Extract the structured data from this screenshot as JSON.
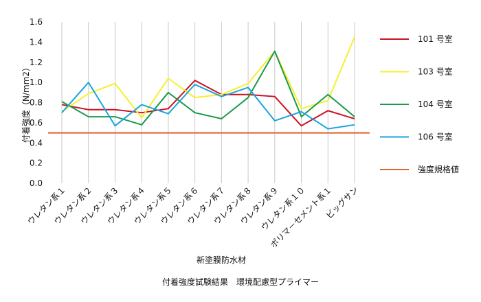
{
  "chart_data": {
    "type": "line",
    "title": "",
    "xlabel": "新塗膜防水材",
    "ylabel": "付着強度（N/mm2）",
    "ylim": [
      0,
      1.6
    ],
    "yticks": [
      0.0,
      0.2,
      0.4,
      0.6,
      0.8,
      1.0,
      1.2,
      1.4,
      1.6
    ],
    "ytick_labels": [
      "0.0",
      "0.2",
      "0.4",
      "0.6",
      "0.8",
      "1.0",
      "1.2",
      "1.4",
      "1.6"
    ],
    "grid": "vertical",
    "categories": [
      "ウレタン系１",
      "ウレタン系２",
      "ウレタン系３",
      "ウレタン系４",
      "ウレタン系５",
      "ウレタン系６",
      "ウレタン系７",
      "ウレタン系８",
      "ウレタン系９",
      "ウレタン系１０",
      "ポリマ－セメント系１",
      "ビッグサン"
    ],
    "series": [
      {
        "name": "101 号室",
        "color": "#cc1122",
        "values": [
          0.78,
          0.73,
          0.73,
          0.7,
          0.74,
          1.02,
          0.88,
          0.88,
          0.86,
          0.57,
          0.72,
          0.64
        ]
      },
      {
        "name": "103 号室",
        "color": "#f5f02a",
        "values": [
          0.71,
          0.89,
          0.99,
          0.65,
          1.04,
          0.85,
          0.88,
          0.99,
          1.31,
          0.74,
          0.82,
          1.45
        ]
      },
      {
        "name": "104 号室",
        "color": "#1a9a4a",
        "values": [
          0.81,
          0.66,
          0.66,
          0.58,
          0.9,
          0.7,
          0.64,
          0.85,
          1.31,
          0.66,
          0.88,
          0.66
        ]
      },
      {
        "name": "106 号室",
        "color": "#1aa3dd",
        "values": [
          0.7,
          1.0,
          0.57,
          0.78,
          0.69,
          0.98,
          0.86,
          0.95,
          0.62,
          0.71,
          0.54,
          0.58
        ]
      }
    ],
    "reference_line": {
      "name": "強度規格値",
      "value": 0.5,
      "color": "#e0622a"
    },
    "legend_position": "right"
  },
  "caption": "付着強度試験結果　環境配慮型プライマー"
}
